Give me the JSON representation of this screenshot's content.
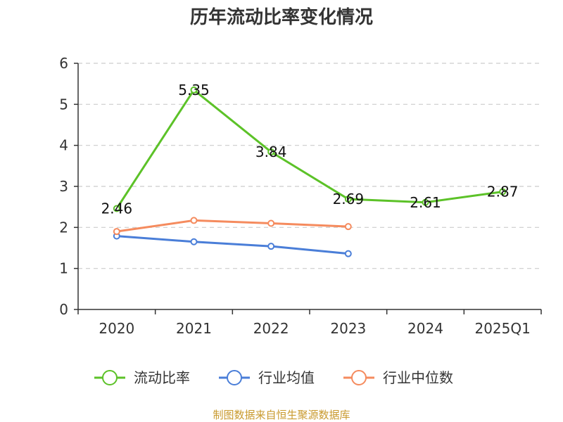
{
  "chart_data": {
    "type": "line",
    "title": "历年流动比率变化情况",
    "categories": [
      "2020",
      "2021",
      "2022",
      "2023",
      "2024",
      "2025Q1"
    ],
    "ylim": [
      0,
      6
    ],
    "yticks": [
      "0",
      "1",
      "2",
      "3",
      "4",
      "5",
      "6"
    ],
    "grid": true,
    "legend_position": "bottom",
    "series": [
      {
        "name": "流动比率",
        "color": "#5cc228",
        "values": [
          2.46,
          5.35,
          3.84,
          2.69,
          2.61,
          2.87
        ],
        "labels": [
          "2.46",
          "5.35",
          "3.84",
          "2.69",
          "2.61",
          "2.87"
        ]
      },
      {
        "name": "行业均值",
        "color": "#4a7ed8",
        "values": [
          1.79,
          1.65,
          1.54,
          1.36,
          null,
          null
        ]
      },
      {
        "name": "行业中位数",
        "color": "#f58b5e",
        "values": [
          1.9,
          2.17,
          2.1,
          2.02,
          null,
          null
        ]
      }
    ],
    "source": "制图数据来自恒生聚源数据库"
  }
}
